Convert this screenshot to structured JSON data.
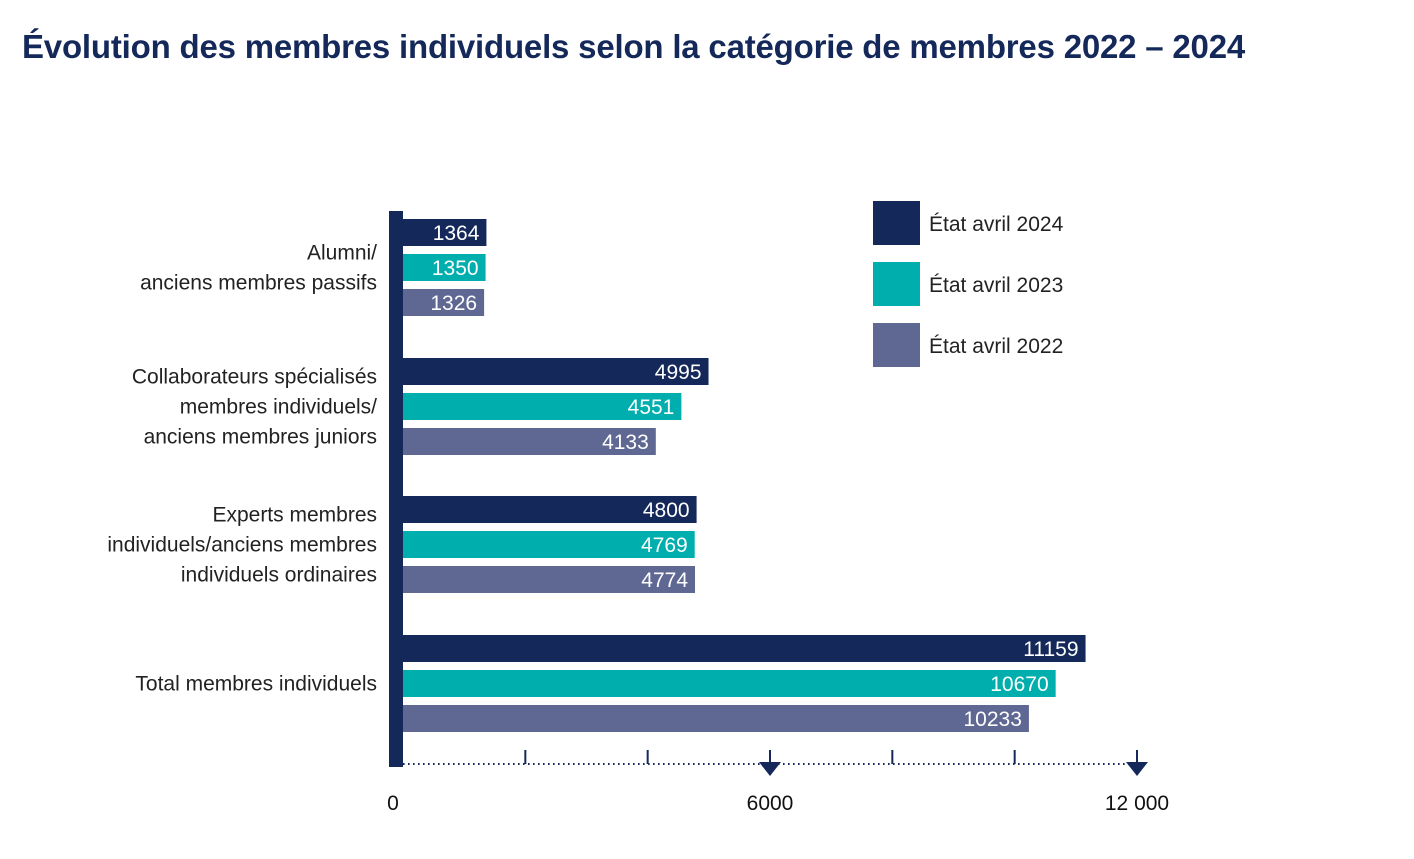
{
  "title": "Évolution des membres individuels selon la catégorie de membres 2022 – 2024",
  "chart_data": {
    "type": "bar",
    "orientation": "horizontal",
    "categories": [
      [
        "Alumni/",
        "anciens membres passifs"
      ],
      [
        "Collaborateurs spécialisés",
        "membres individuels/",
        "anciens membres juniors"
      ],
      [
        "Experts membres",
        "individuels/anciens membres",
        "individuels ordinaires"
      ],
      [
        "Total membres individuels"
      ]
    ],
    "series": [
      {
        "name": "État avril 2024",
        "color": "#14295a",
        "values": [
          1364,
          4995,
          4800,
          11159
        ]
      },
      {
        "name": "État avril 2023",
        "color": "#00aeae",
        "values": [
          1350,
          4551,
          4769,
          10670
        ]
      },
      {
        "name": "État avril 2022",
        "color": "#5f6793",
        "values": [
          1326,
          4133,
          4774,
          10233
        ]
      }
    ],
    "xlim": [
      0,
      12000
    ],
    "x_ticks": [
      {
        "value": 0,
        "label": "0"
      },
      {
        "value": 6000,
        "label": "6000"
      },
      {
        "value": 12000,
        "label": "12 000"
      }
    ],
    "x_minor_ticks": [
      2000,
      4000,
      8000,
      10000
    ],
    "legend_position": "top-right",
    "grid": false
  }
}
